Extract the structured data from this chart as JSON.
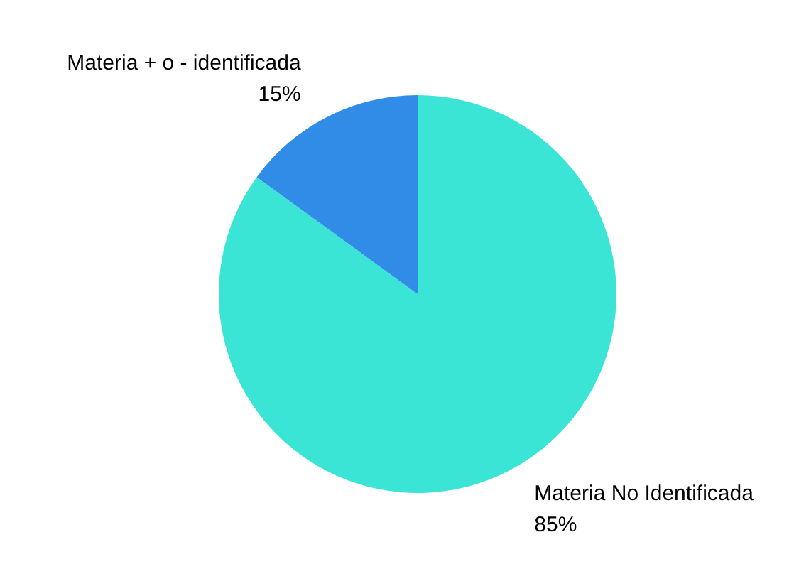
{
  "chart_data": {
    "type": "pie",
    "categories": [
      "Materia No Identificada",
      "Materia + o - identificada"
    ],
    "values": [
      85,
      15
    ],
    "value_labels": [
      "85%",
      "15%"
    ],
    "colors": [
      "#3ae5d6",
      "#318ce7"
    ],
    "legend": false
  }
}
